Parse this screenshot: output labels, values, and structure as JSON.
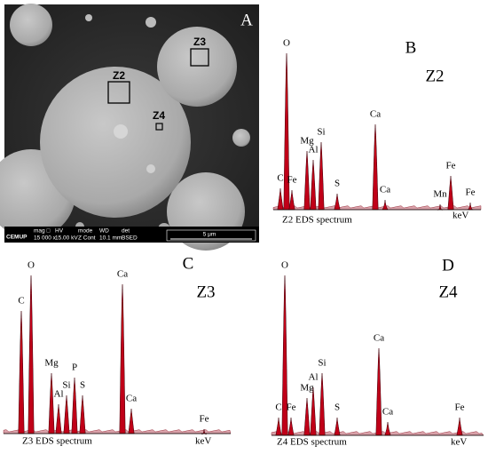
{
  "panels": [
    {
      "label": "A",
      "regions": [
        "Z2",
        "Z3",
        "Z4"
      ],
      "info_bar": {
        "logo": "CEMUP",
        "headers": [
          "mag □",
          "HV",
          "mode",
          "WD",
          "det"
        ],
        "values": [
          "15 000 x",
          "15.00 kV",
          "Z Cont",
          "10.1 mm",
          "BSED"
        ],
        "scale": "5 μm"
      }
    },
    {
      "label": "B",
      "region": "Z2",
      "peaks": [
        "C",
        "O",
        "Fe",
        "Mg",
        "Al",
        "Si",
        "S",
        "Ca",
        "Ca",
        "Mn",
        "Fe",
        "Fe"
      ],
      "caption": "Z2 EDS spectrum",
      "x_unit": "keV"
    },
    {
      "label": "C",
      "region": "Z3",
      "peaks": [
        "C",
        "O",
        "Mg",
        "Al",
        "Si",
        "P",
        "S",
        "Ca",
        "Ca",
        "Fe"
      ],
      "caption": "Z3 EDS spectrum",
      "x_unit": "keV"
    },
    {
      "label": "D",
      "region": "Z4",
      "peaks": [
        "C",
        "O",
        "Fe",
        "Mg",
        "Al",
        "Si",
        "S",
        "Ca",
        "Ca",
        "Fe"
      ],
      "caption": "Z4 EDS spectrum",
      "x_unit": "keV"
    }
  ]
}
